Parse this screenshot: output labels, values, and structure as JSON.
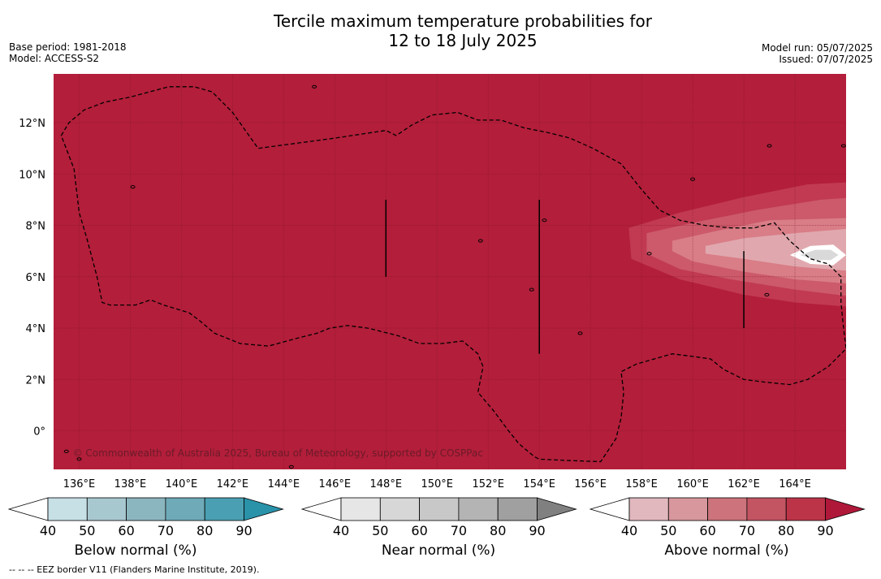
{
  "header": {
    "title_line1": "Tercile maximum temperature probabilities for",
    "title_line2": "12 to 18 July 2025",
    "base_period": "Base period: 1981-2018",
    "model": "Model: ACCESS-S2",
    "model_run": "Model run: 05/07/2025",
    "issued": "Issued: 07/07/2025"
  },
  "map": {
    "lon_range": [
      135,
      166
    ],
    "lat_range": [
      -1.5,
      13.9
    ],
    "lon_ticks": [
      136,
      138,
      140,
      142,
      144,
      146,
      148,
      150,
      152,
      154,
      156,
      158,
      160,
      162,
      164
    ],
    "lon_tick_labels": [
      "136°E",
      "138°E",
      "140°E",
      "142°E",
      "144°E",
      "146°E",
      "148°E",
      "150°E",
      "152°E",
      "154°E",
      "156°E",
      "158°E",
      "160°E",
      "162°E",
      "164°E"
    ],
    "lat_ticks": [
      0,
      2,
      4,
      6,
      8,
      10,
      12
    ],
    "lat_tick_labels": [
      "0°",
      "2°N",
      "4°N",
      "6°N",
      "8°N",
      "10°N",
      "12°N"
    ],
    "copyright": "© Commonwealth of Australia 2025, Bureau of Meteorology, supported by COSPPac",
    "colors": {
      "above_90": "#b31e3a",
      "above_80": "#c13a52",
      "above_70": "#cc5a6a",
      "above_60": "#d97d87",
      "above_50": "#e0a8ae",
      "near_50": "#d9d9d9",
      "near_low": "#ffffff"
    }
  },
  "colorbars": [
    {
      "name": "below",
      "label": "Below normal (%)",
      "ticks": [
        "40",
        "50",
        "60",
        "70",
        "80",
        "90"
      ],
      "colors": [
        "#ffffff",
        "#c6e0e6",
        "#a8c8cf",
        "#8cb6bf",
        "#6eaab8",
        "#4aa0b2",
        "#2a92a9"
      ]
    },
    {
      "name": "near",
      "label": "Near normal (%)",
      "ticks": [
        "40",
        "50",
        "60",
        "70",
        "80",
        "90"
      ],
      "colors": [
        "#ffffff",
        "#e6e6e6",
        "#d7d7d7",
        "#c8c8c8",
        "#b4b4b4",
        "#a0a0a0",
        "#808080"
      ]
    },
    {
      "name": "above",
      "label": "Above normal (%)",
      "ticks": [
        "40",
        "50",
        "60",
        "70",
        "80",
        "90"
      ],
      "colors": [
        "#ffffff",
        "#e0b8bd",
        "#d7979d",
        "#cd737b",
        "#c35563",
        "#bc3448",
        "#b0183a"
      ]
    }
  ],
  "footnote": "--  --  -- EEZ border V11 (Flanders Marine Institute, 2019)."
}
